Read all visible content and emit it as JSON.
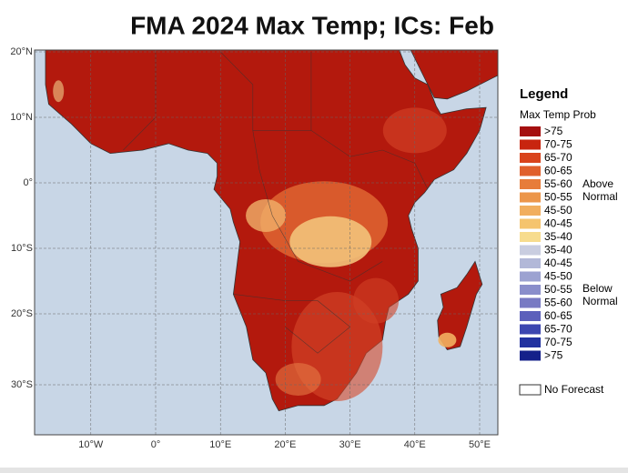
{
  "title": "FMA 2024 Max Temp; ICs: Feb",
  "map": {
    "lat_labels": [
      "20°N",
      "10°N",
      "0°",
      "10°S",
      "20°S",
      "30°S"
    ],
    "lon_labels": [
      "10°W",
      "0°",
      "10°E",
      "20°E",
      "30°E",
      "40°E",
      "50°E"
    ]
  },
  "legend": {
    "title": "Legend",
    "subtitle": "Max Temp Prob",
    "entries": [
      {
        "label": ">75",
        "color": "#a50f0f"
      },
      {
        "label": "70-75",
        "color": "#c8250f"
      },
      {
        "label": "65-70",
        "color": "#d9431c"
      },
      {
        "label": "60-65",
        "color": "#e0602c"
      },
      {
        "label": "55-60",
        "color": "#e77c3a"
      },
      {
        "label": "50-55",
        "color": "#ec964a"
      },
      {
        "label": "45-50",
        "color": "#f1ae5e"
      },
      {
        "label": "40-45",
        "color": "#f5c46e"
      },
      {
        "label": "35-40",
        "color": "#f7dc8e"
      },
      {
        "label": "35-40",
        "color": "#c9cde0"
      },
      {
        "label": "40-45",
        "color": "#b2b8d8"
      },
      {
        "label": "45-50",
        "color": "#9ca2d1"
      },
      {
        "label": "50-55",
        "color": "#8a8ecb"
      },
      {
        "label": "55-60",
        "color": "#787ac3"
      },
      {
        "label": "60-65",
        "color": "#5c60bb"
      },
      {
        "label": "65-70",
        "color": "#3c46b0"
      },
      {
        "label": "70-75",
        "color": "#2232a0"
      },
      {
        "label": ">75",
        "color": "#15208a"
      }
    ],
    "above": [
      "Above",
      "Normal"
    ],
    "below": [
      "Below",
      "Normal"
    ],
    "no_forecast": "No Forecast"
  }
}
